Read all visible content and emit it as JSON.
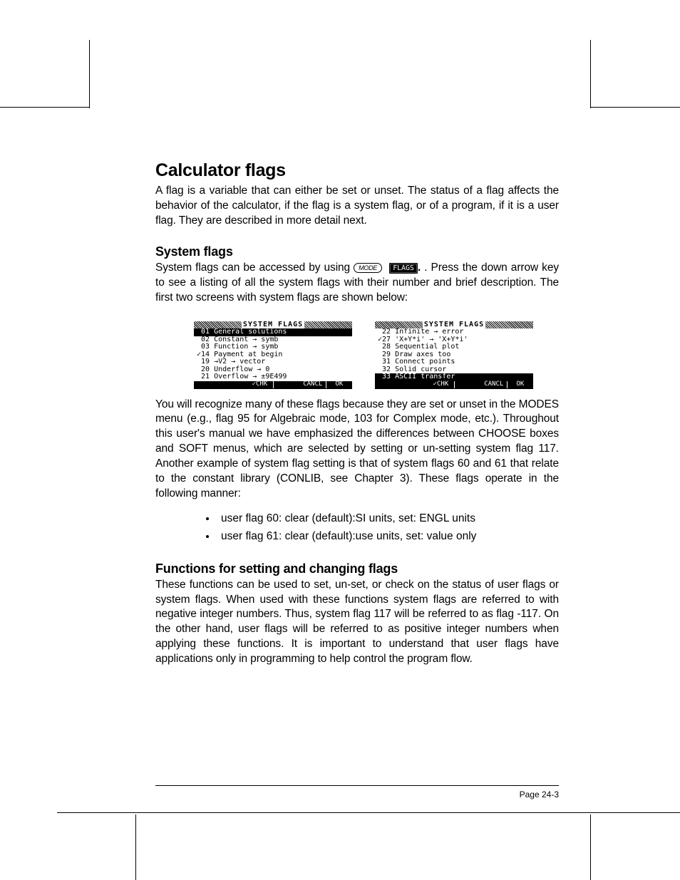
{
  "title": "Calculator flags",
  "intro": "A flag is a variable that can either be set or unset.  The status of a flag affects the behavior of the calculator, if the flag is a system flag, or of a program, if it is a user flag.  They are described in more detail next.",
  "section_system": {
    "heading": "System flags",
    "para1_a": "System flags can be accessed by using ",
    "mode_key": "MODE",
    "flags_key": "FLAGS",
    "para1_b": ".   Press the down arrow key to see a listing of all the system flags with their number and brief description.  The first two screens with system flags are shown below:",
    "para2": "You will recognize many of these flags because they are set or unset in the MODES menu (e.g., flag 95 for Algebraic mode, 103 for Complex mode, etc.).  Throughout this user's manual we have emphasized the differences between CHOOSE boxes and SOFT menus, which are selected by setting or un-setting system flag 117.  Another example of system flag setting is that of system flags 60 and 61 that relate to the constant library (CONLIB, see Chapter 3).   These flags operate in the following manner:",
    "bullets": [
      "user flag 60: clear (default):SI units, set: ENGL units",
      "user flag 61: clear (default):use units, set: value only"
    ]
  },
  "section_fn": {
    "heading": "Functions for setting and changing flags",
    "para": "These functions can be used to set, un-set, or check on the status of user flags or system flags.  When used with these functions system flags are referred to with negative integer numbers.  Thus, system flag 117 will be referred to as flag -117.  On the other hand, user flags will be referred to as positive integer numbers when applying these functions.  It is important to understand that user flags have applications only in programming to help control the program flow."
  },
  "screens": {
    "title": "SYSTEM FLAGS",
    "left": [
      {
        "check": false,
        "sel": true,
        "text": "01 General solutions"
      },
      {
        "check": false,
        "sel": false,
        "text": "02 Constant → symb"
      },
      {
        "check": false,
        "sel": false,
        "text": "03 Function → symb"
      },
      {
        "check": true,
        "sel": false,
        "text": "14 Payment at begin"
      },
      {
        "check": false,
        "sel": false,
        "text": "19 →V2 → vector"
      },
      {
        "check": false,
        "sel": false,
        "text": "20 Underflow → 0"
      },
      {
        "check": false,
        "sel": false,
        "text": "21 Overflow → ±9E499"
      }
    ],
    "right": [
      {
        "check": false,
        "sel": false,
        "text": "22 Infinite → error"
      },
      {
        "check": true,
        "sel": false,
        "text": "27 'X+Y*i' → 'X+Y*i'"
      },
      {
        "check": false,
        "sel": false,
        "text": "28 Sequential plot"
      },
      {
        "check": false,
        "sel": false,
        "text": "29 Draw axes too"
      },
      {
        "check": false,
        "sel": false,
        "text": "31 Connect points"
      },
      {
        "check": false,
        "sel": false,
        "text": "32 Solid cursor"
      },
      {
        "check": false,
        "sel": true,
        "text": "33 ASCII transfer"
      }
    ],
    "soft": [
      "",
      "",
      "✓CHK",
      "",
      "CANCL",
      "OK"
    ]
  },
  "page": "Page 24-3",
  "colors": {
    "bg": "#ffffff",
    "fg": "#000000"
  }
}
